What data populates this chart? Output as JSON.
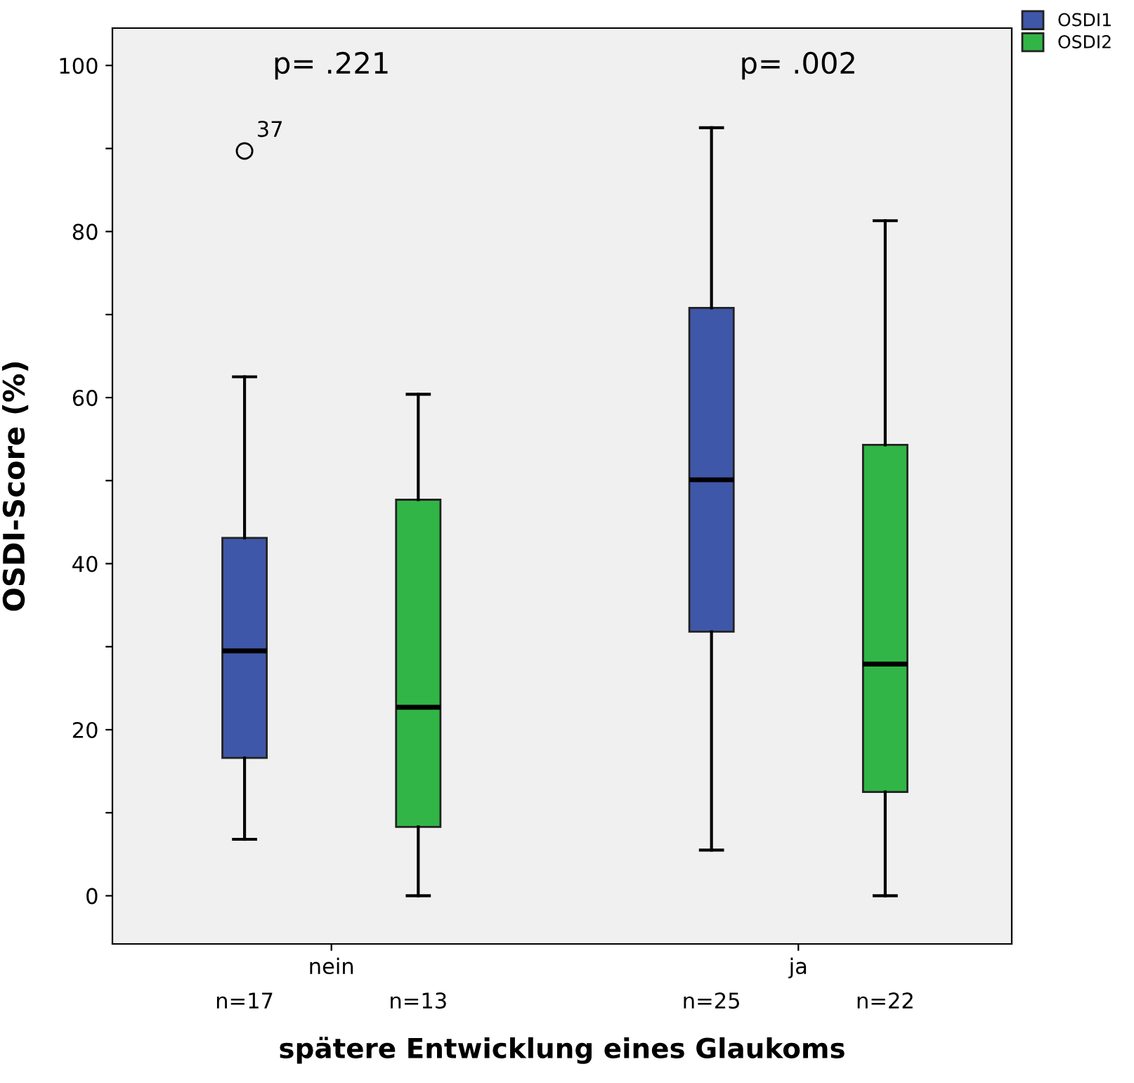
{
  "chart_data": {
    "type": "box",
    "xlabel": "spätere Entwicklung eines Glaukoms",
    "ylabel": "OSDI-Score (%)",
    "categories": [
      "nein",
      "ja"
    ],
    "series": [
      {
        "name": "OSDI1",
        "color": "#3f57a8",
        "boxes": [
          {
            "low": 6.8,
            "q1": 16.6,
            "median": 29.5,
            "q3": 43.1,
            "high": 62.5,
            "outliers": [
              89.7
            ]
          },
          {
            "low": 5.5,
            "q1": 31.8,
            "median": 50.1,
            "q3": 70.8,
            "high": 92.5
          }
        ]
      },
      {
        "name": "OSDI2",
        "color": "#31b546",
        "boxes": [
          {
            "low": 0,
            "q1": 8.3,
            "median": 22.7,
            "q3": 47.7,
            "high": 60.4
          },
          {
            "low": 0,
            "q1": 12.5,
            "median": 27.9,
            "q3": 54.3,
            "high": 81.3
          }
        ]
      }
    ],
    "ylim": [
      -5.8,
      104.5
    ],
    "yticks": [
      0,
      {
        "value": 10,
        "label": null
      },
      20,
      {
        "value": 30,
        "label": null
      },
      40,
      {
        "value": 50,
        "label": null
      },
      60,
      {
        "value": 70,
        "label": null
      },
      80,
      {
        "value": 90,
        "label": null
      },
      100
    ],
    "annotations": [
      "p= .221",
      "p= .002",
      "n=17",
      "n=13",
      "n=25",
      "n=22",
      "37"
    ],
    "grid": false,
    "legend": "top right"
  }
}
